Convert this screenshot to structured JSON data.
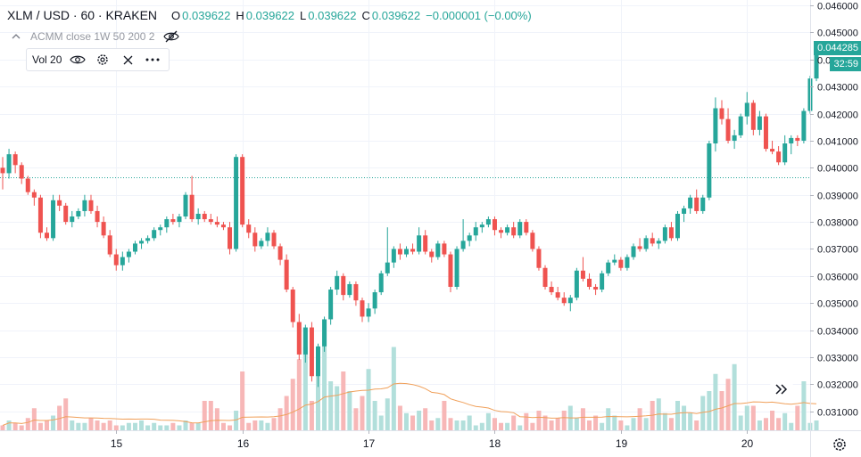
{
  "header": {
    "symbol": "XLM / USD · 60 · KRAKEN",
    "open_label": "O",
    "open": "0.039622",
    "high_label": "H",
    "high": "0.039622",
    "low_label": "L",
    "low": "0.039622",
    "close_label": "C",
    "close": "0.039622",
    "change": "−0.000001 (−0.00%)"
  },
  "study": {
    "label": "ACMM close 1W 50 200 2"
  },
  "volume": {
    "label": "Vol 20"
  },
  "price_tags": {
    "last": "0.044285",
    "countdown": "32:59"
  },
  "colors": {
    "up": "#26a69a",
    "down": "#ef5350",
    "up_vol": "#b2dfdb",
    "down_vol": "#f7b7b7",
    "ma": "#f0a05a",
    "grid": "#f0f3fa",
    "ref_line": "#26a69a"
  },
  "chart_data": {
    "type": "candlestick",
    "y_axis": {
      "ticks": [
        "0.046000",
        "0.045000",
        "0.044000",
        "0.043000",
        "0.042000",
        "0.041000",
        "0.040000",
        "0.039000",
        "0.038000",
        "0.037000",
        "0.036000",
        "0.035000",
        "0.034000",
        "0.033000",
        "0.032000",
        "0.031000"
      ],
      "ylim": [
        0.0303,
        0.0462
      ],
      "scale": "linear"
    },
    "x_axis": {
      "tick_labels": [
        "15",
        "16",
        "17",
        "18",
        "19",
        "20"
      ],
      "tick_bar_index": [
        18,
        38,
        58,
        78,
        98,
        118
      ]
    },
    "reference_line": 0.03965,
    "grid": true,
    "candles": [
      [
        0.04,
        0.0404,
        0.0392,
        0.0398
      ],
      [
        0.0398,
        0.0407,
        0.0396,
        0.0405
      ],
      [
        0.0405,
        0.0406,
        0.0398,
        0.0401
      ],
      [
        0.0401,
        0.0402,
        0.0394,
        0.0396
      ],
      [
        0.0396,
        0.0397,
        0.039,
        0.0391
      ],
      [
        0.0391,
        0.0392,
        0.0386,
        0.0389
      ],
      [
        0.0389,
        0.039,
        0.0374,
        0.0376
      ],
      [
        0.0376,
        0.0378,
        0.0373,
        0.0374
      ],
      [
        0.0374,
        0.039,
        0.0373,
        0.0388
      ],
      [
        0.0388,
        0.039,
        0.0384,
        0.0386
      ],
      [
        0.0386,
        0.0387,
        0.0379,
        0.038
      ],
      [
        0.038,
        0.0384,
        0.0378,
        0.0382
      ],
      [
        0.0382,
        0.0385,
        0.0381,
        0.0384
      ],
      [
        0.0384,
        0.039,
        0.0382,
        0.0388
      ],
      [
        0.0388,
        0.039,
        0.0383,
        0.0384
      ],
      [
        0.0384,
        0.0386,
        0.0378,
        0.038
      ],
      [
        0.038,
        0.0382,
        0.0374,
        0.0375
      ],
      [
        0.0375,
        0.0377,
        0.0367,
        0.0368
      ],
      [
        0.0368,
        0.037,
        0.0362,
        0.0364
      ],
      [
        0.0364,
        0.0369,
        0.0362,
        0.0367
      ],
      [
        0.0367,
        0.037,
        0.0365,
        0.0369
      ],
      [
        0.0369,
        0.0373,
        0.0368,
        0.0372
      ],
      [
        0.0372,
        0.0374,
        0.037,
        0.0373
      ],
      [
        0.0373,
        0.0375,
        0.0372,
        0.0374
      ],
      [
        0.0374,
        0.0378,
        0.0373,
        0.0377
      ],
      [
        0.0377,
        0.0379,
        0.0375,
        0.0378
      ],
      [
        0.0378,
        0.0382,
        0.0376,
        0.0381
      ],
      [
        0.0381,
        0.0383,
        0.0379,
        0.038
      ],
      [
        0.038,
        0.0383,
        0.0378,
        0.0382
      ],
      [
        0.0382,
        0.0391,
        0.0381,
        0.039
      ],
      [
        0.039,
        0.0397,
        0.038,
        0.0381
      ],
      [
        0.0381,
        0.0385,
        0.0379,
        0.0383
      ],
      [
        0.0383,
        0.0384,
        0.038,
        0.0381
      ],
      [
        0.0381,
        0.0383,
        0.0379,
        0.038
      ],
      [
        0.038,
        0.0382,
        0.0378,
        0.0379
      ],
      [
        0.0379,
        0.038,
        0.0377,
        0.0378
      ],
      [
        0.0378,
        0.038,
        0.0368,
        0.037
      ],
      [
        0.037,
        0.0405,
        0.0369,
        0.0404
      ],
      [
        0.0404,
        0.0405,
        0.0378,
        0.0379
      ],
      [
        0.0379,
        0.0381,
        0.0374,
        0.0376
      ],
      [
        0.0376,
        0.0378,
        0.0369,
        0.0371
      ],
      [
        0.0371,
        0.0374,
        0.037,
        0.0373
      ],
      [
        0.0373,
        0.0378,
        0.0371,
        0.0376
      ],
      [
        0.0376,
        0.0377,
        0.037,
        0.0371
      ],
      [
        0.0371,
        0.0372,
        0.0364,
        0.0366
      ],
      [
        0.0366,
        0.0368,
        0.0354,
        0.0355
      ],
      [
        0.0355,
        0.0356,
        0.0341,
        0.0343
      ],
      [
        0.0343,
        0.0346,
        0.0329,
        0.0331
      ],
      [
        0.0331,
        0.0342,
        0.0328,
        0.0341
      ],
      [
        0.0341,
        0.0343,
        0.0321,
        0.0323
      ],
      [
        0.0323,
        0.0335,
        0.0319,
        0.0334
      ],
      [
        0.0334,
        0.0345,
        0.0332,
        0.0344
      ],
      [
        0.0344,
        0.0356,
        0.0342,
        0.0355
      ],
      [
        0.0355,
        0.0362,
        0.0353,
        0.036
      ],
      [
        0.036,
        0.0361,
        0.0351,
        0.0353
      ],
      [
        0.0353,
        0.0358,
        0.0352,
        0.0357
      ],
      [
        0.0357,
        0.0358,
        0.0349,
        0.0351
      ],
      [
        0.0351,
        0.0352,
        0.0343,
        0.0345
      ],
      [
        0.0345,
        0.035,
        0.0343,
        0.0348
      ],
      [
        0.0348,
        0.0355,
        0.0346,
        0.0354
      ],
      [
        0.0354,
        0.0362,
        0.0353,
        0.0361
      ],
      [
        0.0361,
        0.0378,
        0.036,
        0.0365
      ],
      [
        0.0365,
        0.0371,
        0.0363,
        0.037
      ],
      [
        0.037,
        0.0372,
        0.0366,
        0.0368
      ],
      [
        0.0368,
        0.0371,
        0.0367,
        0.037
      ],
      [
        0.037,
        0.0372,
        0.0368,
        0.0369
      ],
      [
        0.0369,
        0.0378,
        0.0368,
        0.0375
      ],
      [
        0.0375,
        0.0377,
        0.0368,
        0.0369
      ],
      [
        0.0369,
        0.037,
        0.0365,
        0.0367
      ],
      [
        0.0367,
        0.0373,
        0.0366,
        0.0372
      ],
      [
        0.0372,
        0.0373,
        0.0367,
        0.0368
      ],
      [
        0.0368,
        0.0369,
        0.0354,
        0.0356
      ],
      [
        0.0356,
        0.0371,
        0.0355,
        0.037
      ],
      [
        0.037,
        0.0381,
        0.0369,
        0.0373
      ],
      [
        0.0373,
        0.0376,
        0.0371,
        0.0375
      ],
      [
        0.0375,
        0.038,
        0.0373,
        0.0378
      ],
      [
        0.0378,
        0.038,
        0.0376,
        0.0379
      ],
      [
        0.0379,
        0.0382,
        0.0378,
        0.0381
      ],
      [
        0.0381,
        0.0382,
        0.0375,
        0.0377
      ],
      [
        0.0377,
        0.0378,
        0.0374,
        0.0376
      ],
      [
        0.0376,
        0.0379,
        0.0375,
        0.0378
      ],
      [
        0.0378,
        0.038,
        0.0374,
        0.0375
      ],
      [
        0.0375,
        0.0381,
        0.0374,
        0.038
      ],
      [
        0.038,
        0.0381,
        0.0375,
        0.0376
      ],
      [
        0.0376,
        0.0377,
        0.0369,
        0.037
      ],
      [
        0.037,
        0.0371,
        0.0362,
        0.0363
      ],
      [
        0.0363,
        0.0364,
        0.0355,
        0.0356
      ],
      [
        0.0356,
        0.0358,
        0.0353,
        0.0354
      ],
      [
        0.0354,
        0.0356,
        0.0351,
        0.0352
      ],
      [
        0.0352,
        0.0354,
        0.0349,
        0.035
      ],
      [
        0.035,
        0.0353,
        0.0347,
        0.0352
      ],
      [
        0.0352,
        0.0363,
        0.0351,
        0.0362
      ],
      [
        0.0362,
        0.0367,
        0.0358,
        0.0359
      ],
      [
        0.0359,
        0.0361,
        0.0355,
        0.0356
      ],
      [
        0.0356,
        0.0357,
        0.0353,
        0.0355
      ],
      [
        0.0355,
        0.0362,
        0.0354,
        0.0361
      ],
      [
        0.0361,
        0.0366,
        0.036,
        0.0365
      ],
      [
        0.0365,
        0.0368,
        0.0364,
        0.0366
      ],
      [
        0.0366,
        0.0367,
        0.0362,
        0.0363
      ],
      [
        0.0363,
        0.0368,
        0.0362,
        0.0367
      ],
      [
        0.0367,
        0.0372,
        0.0366,
        0.0371
      ],
      [
        0.0371,
        0.0374,
        0.0369,
        0.037
      ],
      [
        0.037,
        0.0375,
        0.0369,
        0.0374
      ],
      [
        0.0374,
        0.0376,
        0.0371,
        0.0372
      ],
      [
        0.0372,
        0.0374,
        0.037,
        0.0373
      ],
      [
        0.0373,
        0.0379,
        0.0372,
        0.0378
      ],
      [
        0.0378,
        0.038,
        0.0373,
        0.0374
      ],
      [
        0.0374,
        0.0384,
        0.0373,
        0.0383
      ],
      [
        0.0383,
        0.0386,
        0.038,
        0.0385
      ],
      [
        0.0385,
        0.039,
        0.0383,
        0.0389
      ],
      [
        0.0389,
        0.0392,
        0.0383,
        0.0384
      ],
      [
        0.0384,
        0.039,
        0.0383,
        0.0389
      ],
      [
        0.0389,
        0.041,
        0.0388,
        0.0409
      ],
      [
        0.0409,
        0.0426,
        0.0406,
        0.0422
      ],
      [
        0.0422,
        0.0425,
        0.0416,
        0.0418
      ],
      [
        0.0418,
        0.0422,
        0.0409,
        0.041
      ],
      [
        0.041,
        0.0414,
        0.0407,
        0.0412
      ],
      [
        0.0412,
        0.042,
        0.0411,
        0.0419
      ],
      [
        0.0419,
        0.0428,
        0.0416,
        0.0424
      ],
      [
        0.0424,
        0.0425,
        0.0412,
        0.0414
      ],
      [
        0.0414,
        0.0421,
        0.0412,
        0.0419
      ],
      [
        0.0419,
        0.042,
        0.0406,
        0.0407
      ],
      [
        0.0407,
        0.041,
        0.0405,
        0.0406
      ],
      [
        0.0406,
        0.0408,
        0.0401,
        0.0402
      ],
      [
        0.0402,
        0.0412,
        0.0401,
        0.0409
      ],
      [
        0.0409,
        0.0412,
        0.0405,
        0.0411
      ],
      [
        0.0411,
        0.0412,
        0.0408,
        0.041
      ],
      [
        0.041,
        0.0422,
        0.0409,
        0.0421
      ],
      [
        0.0421,
        0.0434,
        0.042,
        0.0433
      ],
      [
        0.0433,
        0.0443,
        0.0432,
        0.0443
      ]
    ],
    "volumes": [
      2,
      4,
      3,
      2,
      5,
      9,
      3,
      4,
      6,
      10,
      13,
      4,
      3,
      3,
      5,
      4,
      3,
      4,
      2,
      2,
      3,
      3,
      4,
      2,
      3,
      2,
      2,
      3,
      2,
      4,
      3,
      3,
      12,
      12,
      9,
      3,
      2,
      8,
      24,
      3,
      4,
      4,
      3,
      5,
      9,
      14,
      21,
      29,
      34,
      12,
      23,
      40,
      20,
      18,
      24,
      16,
      9,
      14,
      25,
      12,
      6,
      13,
      34,
      10,
      7,
      6,
      8,
      9,
      4,
      5,
      12,
      5,
      4,
      4,
      6,
      2,
      3,
      7,
      5,
      3,
      3,
      6,
      2,
      7,
      3,
      8,
      6,
      4,
      5,
      8,
      10,
      5,
      9,
      4,
      6,
      3,
      9,
      6,
      4,
      2,
      5,
      9,
      5,
      12,
      13,
      7,
      5,
      12,
      10,
      7,
      4,
      14,
      16,
      23,
      16,
      21,
      27,
      6,
      10,
      10,
      4,
      5,
      8,
      5,
      7,
      3,
      10,
      20,
      3,
      4
    ]
  }
}
